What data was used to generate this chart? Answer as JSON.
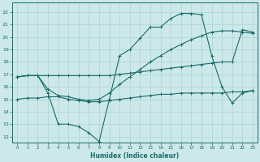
{
  "xlabel": "Humidex (Indice chaleur)",
  "xlim": [
    -0.5,
    23.5
  ],
  "ylim": [
    11.5,
    22.8
  ],
  "yticks": [
    12,
    13,
    14,
    15,
    16,
    17,
    18,
    19,
    20,
    21,
    22
  ],
  "xticks": [
    0,
    1,
    2,
    3,
    4,
    5,
    6,
    7,
    8,
    9,
    10,
    11,
    12,
    13,
    14,
    15,
    16,
    17,
    18,
    19,
    20,
    21,
    22,
    23
  ],
  "bg_color": "#cce8e8",
  "grid_color": "#aad4d4",
  "line_color": "#1a6b6b",
  "lines": [
    {
      "x": [
        0,
        1,
        2,
        3,
        4,
        5,
        6,
        7,
        8,
        9,
        10,
        11,
        12,
        13,
        14,
        15,
        16,
        17,
        18,
        19,
        20,
        21,
        22,
        23
      ],
      "y": [
        16.8,
        16.9,
        16.9,
        16.9,
        16.9,
        16.9,
        16.9,
        16.9,
        16.9,
        16.9,
        17.0,
        17.1,
        17.2,
        17.3,
        17.4,
        17.5,
        17.6,
        17.7,
        17.8,
        17.9,
        18.0,
        18.0,
        20.6,
        20.4
      ]
    },
    {
      "x": [
        0,
        1,
        2,
        3,
        4,
        5,
        6,
        7,
        8,
        9,
        10,
        11,
        12,
        13,
        14,
        15,
        16,
        17,
        18,
        19,
        20,
        21,
        22,
        23
      ],
      "y": [
        16.8,
        16.9,
        16.9,
        15.5,
        13.0,
        13.0,
        12.8,
        12.3,
        11.6,
        15.0,
        18.5,
        19.0,
        19.9,
        20.8,
        20.8,
        21.5,
        21.9,
        21.9,
        21.8,
        18.5,
        16.0,
        14.7,
        15.5,
        15.7
      ]
    },
    {
      "x": [
        0,
        1,
        2,
        3,
        4,
        5,
        6,
        7,
        8,
        9,
        10,
        11,
        12,
        13,
        14,
        15,
        16,
        17,
        18,
        19,
        20,
        21,
        22,
        23
      ],
      "y": [
        16.8,
        16.9,
        16.9,
        15.8,
        15.3,
        15.2,
        15.0,
        14.9,
        15.0,
        15.5,
        16.2,
        16.8,
        17.4,
        18.0,
        18.5,
        19.0,
        19.4,
        19.8,
        20.1,
        20.4,
        20.5,
        20.5,
        20.4,
        20.3
      ]
    },
    {
      "x": [
        0,
        1,
        2,
        3,
        4,
        5,
        6,
        7,
        8,
        9,
        10,
        11,
        12,
        13,
        14,
        15,
        16,
        17,
        18,
        19,
        20,
        21,
        22,
        23
      ],
      "y": [
        15.0,
        15.1,
        15.1,
        15.2,
        15.2,
        15.0,
        14.9,
        14.8,
        14.8,
        14.9,
        15.0,
        15.1,
        15.2,
        15.3,
        15.4,
        15.4,
        15.5,
        15.5,
        15.5,
        15.5,
        15.5,
        15.6,
        15.6,
        15.7
      ]
    }
  ]
}
